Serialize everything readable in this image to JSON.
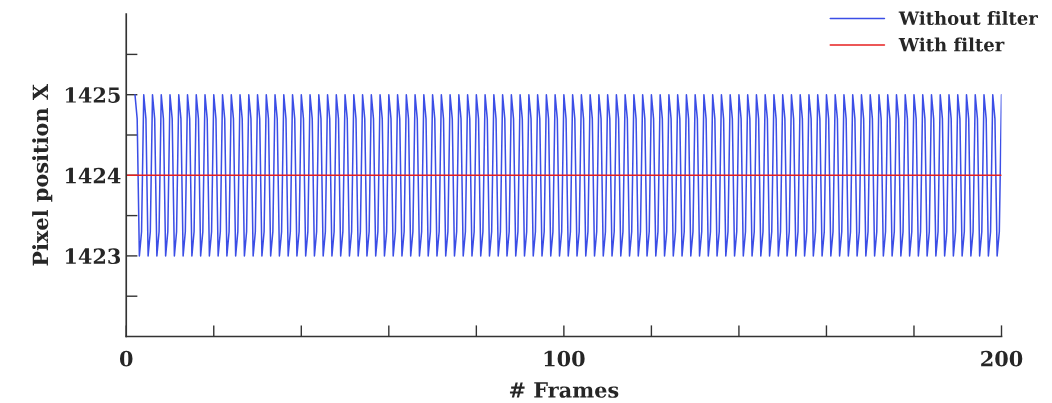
{
  "chart_data": {
    "type": "line",
    "xlabel": "# Frames",
    "ylabel": "Pixel position X",
    "xlim": [
      0,
      200
    ],
    "ylim": [
      1422,
      1426
    ],
    "xticks": [
      0,
      {
        "value": 20,
        "label": null
      },
      {
        "value": 40,
        "label": null
      },
      {
        "value": 60,
        "label": null
      },
      {
        "value": 80,
        "label": null
      },
      100,
      {
        "value": 120,
        "label": null
      },
      {
        "value": 140,
        "label": null
      },
      {
        "value": 160,
        "label": null
      },
      {
        "value": 180,
        "label": null
      },
      200
    ],
    "yticks": [
      {
        "value": 1422.5,
        "label": null
      },
      1423,
      {
        "value": 1423.5,
        "label": null
      },
      1424,
      {
        "value": 1424.5,
        "label": null
      },
      1425,
      {
        "value": 1425.5,
        "label": null
      }
    ],
    "grid": false,
    "legend": "top right",
    "marker": "none",
    "line_style": "solid",
    "series": [
      {
        "name": "Without filter",
        "color": "#3b4ee6",
        "x": [
          2,
          2.5,
          3,
          3.5,
          4,
          4.5,
          5,
          5.5,
          6,
          6.5,
          7,
          7.5,
          8,
          8.5,
          9,
          9.5,
          10,
          10.5,
          11,
          11.5,
          12,
          12.5,
          13,
          13.5,
          14,
          14.5,
          15,
          15.5,
          16,
          16.5,
          17,
          17.5,
          18,
          18.5,
          19,
          19.5,
          20,
          20.5,
          21,
          21.5,
          22,
          22.5,
          23,
          23.5,
          24,
          24.5,
          25,
          25.5,
          26,
          26.5,
          27,
          27.5,
          28,
          28.5,
          29,
          29.5,
          30,
          30.5,
          31,
          31.5,
          32,
          32.5,
          33,
          33.5,
          34,
          34.5,
          35,
          35.5,
          36,
          36.5,
          37,
          37.5,
          38,
          38.5,
          39,
          39.5,
          40,
          40.5,
          41,
          41.5,
          42,
          42.5,
          43,
          43.5,
          44,
          44.5,
          45,
          45.5,
          46,
          46.5,
          47,
          47.5,
          48,
          48.5,
          49,
          49.5,
          50,
          50.5,
          51,
          51.5,
          52,
          52.5,
          53,
          53.5,
          54,
          54.5,
          55,
          55.5,
          56,
          56.5,
          57,
          57.5,
          58,
          58.5,
          59,
          59.5,
          60,
          60.5,
          61,
          61.5,
          62,
          62.5,
          63,
          63.5,
          64,
          64.5,
          65,
          65.5,
          66,
          66.5,
          67,
          67.5,
          68,
          68.5,
          69,
          69.5,
          70,
          70.5,
          71,
          71.5,
          72,
          72.5,
          73,
          73.5,
          74,
          74.5,
          75,
          75.5,
          76,
          76.5,
          77,
          77.5,
          78,
          78.5,
          79,
          79.5,
          80,
          80.5,
          81,
          81.5,
          82,
          82.5,
          83,
          83.5,
          84,
          84.5,
          85,
          85.5,
          86,
          86.5,
          87,
          87.5,
          88,
          88.5,
          89,
          89.5,
          90,
          90.5,
          91,
          91.5,
          92,
          92.5,
          93,
          93.5,
          94,
          94.5,
          95,
          95.5,
          96,
          96.5,
          97,
          97.5,
          98,
          98.5,
          99,
          99.5,
          100,
          100.5,
          101,
          101.5,
          102,
          102.5,
          103,
          103.5,
          104,
          104.5,
          105,
          105.5,
          106,
          106.5,
          107,
          107.5,
          108,
          108.5,
          109,
          109.5,
          110,
          110.5,
          111,
          111.5,
          112,
          112.5,
          113,
          113.5,
          114,
          114.5,
          115,
          115.5,
          116,
          116.5,
          117,
          117.5,
          118,
          118.5,
          119,
          119.5,
          120,
          120.5,
          121,
          121.5,
          122,
          122.5,
          123,
          123.5,
          124,
          124.5,
          125,
          125.5,
          126,
          126.5,
          127,
          127.5,
          128,
          128.5,
          129,
          129.5,
          130,
          130.5,
          131,
          131.5,
          132,
          132.5,
          133,
          133.5,
          134,
          134.5,
          135,
          135.5,
          136,
          136.5,
          137,
          137.5,
          138,
          138.5,
          139,
          139.5,
          140,
          140.5,
          141,
          141.5,
          142,
          142.5,
          143,
          143.5,
          144,
          144.5,
          145,
          145.5,
          146,
          146.5,
          147,
          147.5,
          148,
          148.5,
          149,
          149.5,
          150,
          150.5,
          151,
          151.5,
          152,
          152.5,
          153,
          153.5,
          154,
          154.5,
          155,
          155.5,
          156,
          156.5,
          157,
          157.5,
          158,
          158.5,
          159,
          159.5,
          160,
          160.5,
          161,
          161.5,
          162,
          162.5,
          163,
          163.5,
          164,
          164.5,
          165,
          165.5,
          166,
          166.5,
          167,
          167.5,
          168,
          168.5,
          169,
          169.5,
          170,
          170.5,
          171,
          171.5,
          172,
          172.5,
          173,
          173.5,
          174,
          174.5,
          175,
          175.5,
          176,
          176.5,
          177,
          177.5,
          178,
          178.5,
          179,
          179.5,
          180,
          180.5,
          181,
          181.5,
          182,
          182.5,
          183,
          183.5,
          184,
          184.5,
          185,
          185.5,
          186,
          186.5,
          187,
          187.5,
          188,
          188.5,
          189,
          189.5,
          190,
          190.5,
          191,
          191.5,
          192,
          192.5,
          193,
          193.5,
          194,
          194.5,
          195,
          195.5,
          196,
          196.5,
          197,
          197.5,
          198,
          198.5,
          199,
          199.5,
          200
        ],
        "values": [
          1425,
          1424.7,
          1423,
          1423.3,
          1425,
          1424.7,
          1423,
          1423.3,
          1425,
          1424.7,
          1423,
          1423.3,
          1425,
          1424.7,
          1423,
          1423.3,
          1425,
          1424.7,
          1423,
          1423.3,
          1425,
          1424.7,
          1423,
          1423.3,
          1425,
          1424.7,
          1423,
          1423.3,
          1425,
          1424.7,
          1423,
          1423.3,
          1425,
          1424.7,
          1423,
          1423.3,
          1425,
          1424.7,
          1423,
          1423.3,
          1425,
          1424.7,
          1423,
          1423.3,
          1425,
          1424.7,
          1423,
          1423.3,
          1425,
          1424.7,
          1423,
          1423.3,
          1425,
          1424.7,
          1423,
          1423.3,
          1425,
          1424.7,
          1423,
          1423.3,
          1425,
          1424.7,
          1423,
          1423.3,
          1425,
          1424.7,
          1423,
          1423.3,
          1425,
          1424.7,
          1423,
          1423.3,
          1425,
          1424.7,
          1423,
          1423.3,
          1425,
          1424.7,
          1423,
          1423.3,
          1425,
          1424.7,
          1423,
          1423.3,
          1425,
          1424.7,
          1423,
          1423.3,
          1425,
          1424.7,
          1423,
          1423.3,
          1425,
          1424.7,
          1423,
          1423.3,
          1425,
          1424.7,
          1423,
          1423.3,
          1425,
          1424.7,
          1423,
          1423.3,
          1425,
          1424.7,
          1423,
          1423.3,
          1425,
          1424.7,
          1423,
          1423.3,
          1425,
          1424.7,
          1423,
          1423.3,
          1425,
          1424.7,
          1423,
          1423.3,
          1425,
          1424.7,
          1423,
          1423.3,
          1425,
          1424.7,
          1423,
          1423.3,
          1425,
          1424.7,
          1423,
          1423.3,
          1425,
          1424.7,
          1423,
          1423.3,
          1425,
          1424.7,
          1423,
          1423.3,
          1425,
          1424.7,
          1423,
          1423.3,
          1425,
          1424.7,
          1423,
          1423.3,
          1425,
          1424.7,
          1423,
          1423.3,
          1425,
          1424.7,
          1423,
          1423.3,
          1425,
          1424.7,
          1423,
          1423.3,
          1425,
          1424.7,
          1423,
          1423.3,
          1425,
          1424.7,
          1423,
          1423.3,
          1425,
          1424.7,
          1423,
          1423.3,
          1425,
          1424.7,
          1423,
          1423.3,
          1425,
          1424.7,
          1423,
          1423.3,
          1425,
          1424.7,
          1423,
          1423.3,
          1425,
          1424.7,
          1423,
          1423.3,
          1425,
          1424.7,
          1423,
          1423.3,
          1425,
          1424.7,
          1423,
          1423.3,
          1425,
          1424.7,
          1423,
          1423.3,
          1425,
          1424.7,
          1423,
          1423.3,
          1425,
          1424.7,
          1423,
          1423.3,
          1425,
          1424.7,
          1423,
          1423.3,
          1425,
          1424.7,
          1423,
          1423.3,
          1425,
          1424.7,
          1423,
          1423.3,
          1425,
          1424.7,
          1423,
          1423.3,
          1425,
          1424.7,
          1423,
          1423.3,
          1425,
          1424.7,
          1423,
          1423.3,
          1425,
          1424.7,
          1423,
          1423.3,
          1425,
          1424.7,
          1423,
          1423.3,
          1425,
          1424.7,
          1423,
          1423.3,
          1425,
          1424.7,
          1423,
          1423.3,
          1425,
          1424.7,
          1423,
          1423.3,
          1425,
          1424.7,
          1423,
          1423.3,
          1425,
          1424.7,
          1423,
          1423.3,
          1425,
          1424.7,
          1423,
          1423.3,
          1425,
          1424.7,
          1423,
          1423.3,
          1425,
          1424.7,
          1423,
          1423.3,
          1425,
          1424.7,
          1423,
          1423.3,
          1425,
          1424.7,
          1423,
          1423.3,
          1425,
          1424.7,
          1423,
          1423.3,
          1425,
          1424.7,
          1423,
          1423.3,
          1425,
          1424.7,
          1423,
          1423.3,
          1425,
          1424.7,
          1423,
          1423.3,
          1425,
          1424.7,
          1423,
          1423.3,
          1425,
          1424.7,
          1423,
          1423.3,
          1425,
          1424.7,
          1423,
          1423.3,
          1425,
          1424.7,
          1423,
          1423.3,
          1425,
          1424.7,
          1423,
          1423.3,
          1425,
          1424.7,
          1423,
          1423.3,
          1425,
          1424.7,
          1423,
          1423.3,
          1425,
          1424.7,
          1423,
          1423.3,
          1425,
          1424.7,
          1423,
          1423.3,
          1425,
          1424.7,
          1423,
          1423.3,
          1425,
          1424.7,
          1423,
          1423.3,
          1425,
          1424.7,
          1423,
          1423.3,
          1425,
          1424.7,
          1423,
          1423.3,
          1425,
          1424.7,
          1423,
          1423.3,
          1425,
          1424.7,
          1423,
          1423.3,
          1425,
          1424.7,
          1423,
          1423.3,
          1425,
          1424.7,
          1423,
          1423.3,
          1425,
          1424.7,
          1423,
          1423.3,
          1425,
          1424.7,
          1423,
          1423.3,
          1425,
          1424.7,
          1423,
          1423.3,
          1425,
          1424.7,
          1423,
          1423.3,
          1425,
          1424.7,
          1423,
          1423.3,
          1425,
          1424.7,
          1423,
          1423.3,
          1425,
          1424.7,
          1423,
          1423.3,
          1425,
          1424.7,
          1423,
          1423.3,
          1425
        ]
      },
      {
        "name": "With filter",
        "color": "#e62020",
        "x": [
          0,
          200
        ],
        "values": [
          1424,
          1424
        ]
      }
    ]
  }
}
